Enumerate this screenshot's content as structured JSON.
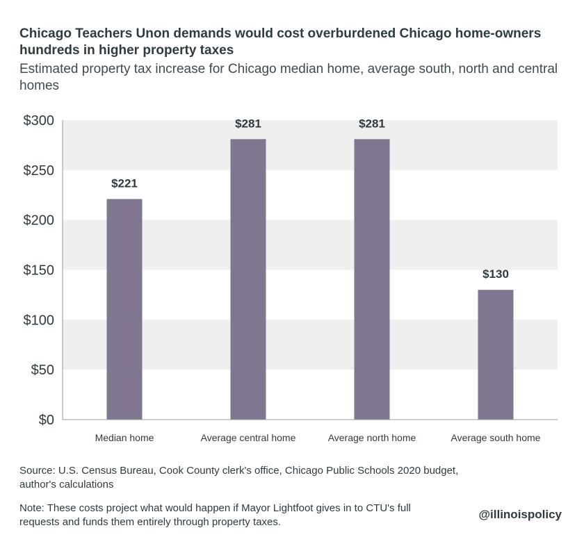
{
  "header": {
    "title": "Chicago Teachers Unon demands would cost overburdened Chicago home-owners hundreds in higher property taxes",
    "subtitle": "Estimated property tax increase for Chicago median home, average south, north and central homes"
  },
  "footer": {
    "source": "Source: U.S. Census Bureau, Cook County clerk's office, Chicago Public Schools 2020 budget, author's calculations",
    "note": "Note: These costs project what would happen if Mayor Lightfoot gives in to CTU's full requests and funds them entirely through property taxes.",
    "brand": "@illinoispolicy"
  },
  "colors": {
    "bar": "#80768f",
    "band": "#efefef",
    "text": "#2f3a3f",
    "axis": "#9a9a9a"
  },
  "chart_data": {
    "type": "bar",
    "title": "Chicago Teachers Unon demands would cost overburdened Chicago home-owners hundreds in higher property taxes",
    "subtitle": "Estimated property tax increase for Chicago median home, average south, north and central homes",
    "categories": [
      "Median home",
      "Average central home",
      "Average north home",
      "Average south home"
    ],
    "values": [
      221,
      281,
      281,
      130
    ],
    "value_labels": [
      "$221",
      "$281",
      "$281",
      "$130"
    ],
    "xlabel": "",
    "ylabel": "",
    "ylim": [
      0,
      300
    ],
    "yticks": [
      0,
      50,
      100,
      150,
      200,
      250,
      300
    ],
    "ytick_labels": [
      "$0",
      "$50",
      "$100",
      "$150",
      "$200",
      "$250",
      "$300"
    ],
    "grid": "alternating horizontal bands",
    "legend": "none"
  }
}
